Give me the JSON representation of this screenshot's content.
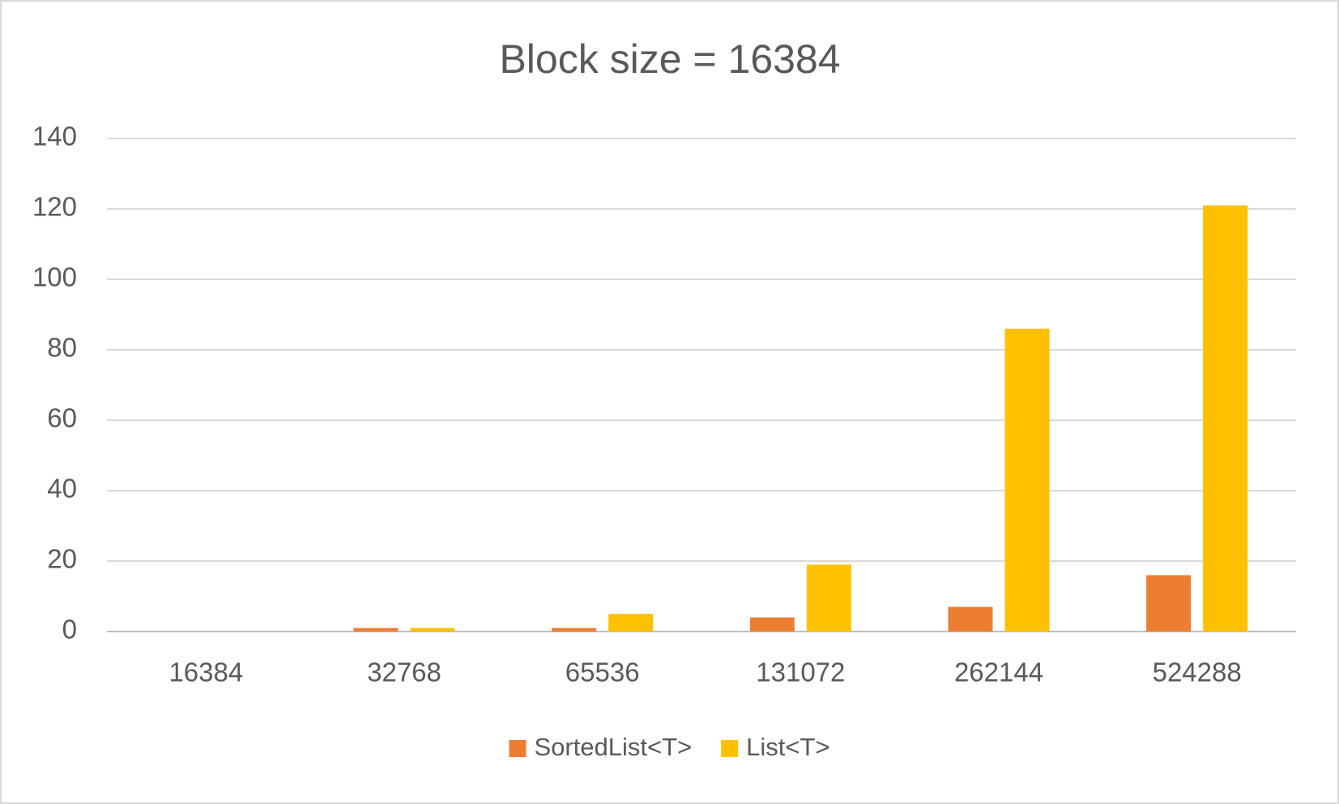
{
  "chart_data": {
    "type": "bar",
    "title": "Block size = 16384",
    "categories": [
      "16384",
      "32768",
      "65536",
      "131072",
      "262144",
      "524288"
    ],
    "series": [
      {
        "name": "SortedList<T>",
        "color": "#ed7d31",
        "values": [
          0,
          1,
          1,
          4,
          7,
          16
        ]
      },
      {
        "name": "List<T>",
        "color": "#ffc000",
        "values": [
          0,
          1,
          5,
          19,
          86,
          121
        ]
      }
    ],
    "ylim": [
      0,
      140
    ],
    "yticks": [
      0,
      20,
      40,
      60,
      80,
      100,
      120,
      140
    ],
    "grid": true,
    "legend": "bottom"
  }
}
